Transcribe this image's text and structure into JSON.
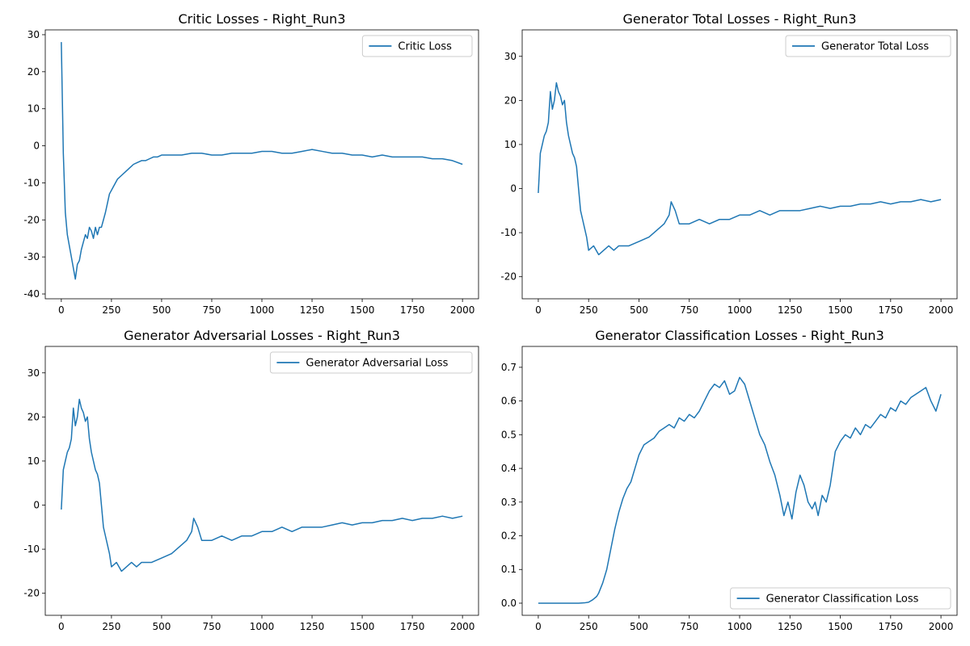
{
  "figure": {
    "line_color": "#1f77b4"
  },
  "chart_data": [
    {
      "type": "line",
      "title": "Critic Losses - Right_Run3",
      "xlabel": "",
      "ylabel": "",
      "xlim": [
        -80,
        2080
      ],
      "ylim": [
        -41.3,
        31.3
      ],
      "xticks": [
        0,
        250,
        500,
        750,
        1000,
        1250,
        1500,
        1750,
        2000
      ],
      "yticks": [
        -40,
        -30,
        -20,
        -10,
        0,
        10,
        20,
        30
      ],
      "grid": false,
      "legend": "top-right",
      "series": [
        {
          "name": "Critic Loss",
          "x": [
            0,
            10,
            20,
            30,
            40,
            50,
            60,
            70,
            80,
            90,
            100,
            110,
            120,
            130,
            140,
            150,
            160,
            170,
            180,
            190,
            200,
            220,
            240,
            260,
            280,
            300,
            320,
            340,
            360,
            380,
            400,
            420,
            440,
            460,
            480,
            500,
            550,
            600,
            650,
            700,
            750,
            800,
            850,
            900,
            950,
            1000,
            1050,
            1100,
            1150,
            1200,
            1250,
            1300,
            1350,
            1400,
            1450,
            1500,
            1550,
            1600,
            1650,
            1700,
            1750,
            1800,
            1850,
            1900,
            1950,
            2000
          ],
          "y": [
            28,
            -2,
            -18,
            -24,
            -27,
            -30,
            -33,
            -36,
            -32,
            -31,
            -28,
            -26,
            -24,
            -25,
            -22,
            -23,
            -25,
            -22,
            -24,
            -22,
            -22,
            -18,
            -13,
            -11,
            -9,
            -8,
            -7,
            -6,
            -5,
            -4.5,
            -4,
            -4,
            -3.5,
            -3,
            -3,
            -2.5,
            -2.5,
            -2.5,
            -2,
            -2,
            -2.5,
            -2.5,
            -2,
            -2,
            -2,
            -1.5,
            -1.5,
            -2,
            -2,
            -1.5,
            -1,
            -1.5,
            -2,
            -2,
            -2.5,
            -2.5,
            -3,
            -2.5,
            -3,
            -3,
            -3,
            -3,
            -3.5,
            -3.5,
            -4,
            -5
          ]
        }
      ]
    },
    {
      "type": "line",
      "title": "Generator Total Losses - Right_Run3",
      "xlabel": "",
      "ylabel": "",
      "xlim": [
        -80,
        2080
      ],
      "ylim": [
        -25,
        36
      ],
      "xticks": [
        0,
        250,
        500,
        750,
        1000,
        1250,
        1500,
        1750,
        2000
      ],
      "yticks": [
        -20,
        -10,
        0,
        10,
        20,
        30
      ],
      "grid": false,
      "legend": "top-right",
      "series": [
        {
          "name": "Generator Total Loss",
          "x": [
            0,
            10,
            20,
            30,
            40,
            50,
            60,
            70,
            80,
            90,
            100,
            110,
            120,
            130,
            140,
            150,
            160,
            170,
            180,
            190,
            200,
            210,
            220,
            230,
            240,
            250,
            275,
            300,
            325,
            350,
            375,
            400,
            450,
            500,
            550,
            600,
            625,
            650,
            660,
            680,
            700,
            750,
            800,
            850,
            900,
            950,
            1000,
            1050,
            1100,
            1150,
            1200,
            1250,
            1300,
            1350,
            1400,
            1450,
            1500,
            1550,
            1600,
            1650,
            1700,
            1750,
            1800,
            1850,
            1900,
            1950,
            2000
          ],
          "y": [
            -1,
            8,
            10,
            12,
            13,
            15,
            22,
            18,
            20,
            24,
            22,
            21,
            19,
            20,
            15,
            12,
            10,
            8,
            7,
            5,
            0,
            -5,
            -7,
            -9,
            -11,
            -14,
            -13,
            -15,
            -14,
            -13,
            -14,
            -13,
            -13,
            -12,
            -11,
            -9,
            -8,
            -6,
            -3,
            -5,
            -8,
            -8,
            -7,
            -8,
            -7,
            -7,
            -6,
            -6,
            -5,
            -6,
            -5,
            -5,
            -5,
            -4.5,
            -4,
            -4.5,
            -4,
            -4,
            -3.5,
            -3.5,
            -3,
            -3.5,
            -3,
            -3,
            -2.5,
            -3,
            -2.5
          ]
        }
      ]
    },
    {
      "type": "line",
      "title": "Generator Adversarial Losses - Right_Run3",
      "xlabel": "",
      "ylabel": "",
      "xlim": [
        -80,
        2080
      ],
      "ylim": [
        -25,
        36
      ],
      "xticks": [
        0,
        250,
        500,
        750,
        1000,
        1250,
        1500,
        1750,
        2000
      ],
      "yticks": [
        -20,
        -10,
        0,
        10,
        20,
        30
      ],
      "grid": false,
      "legend": "top-right",
      "series": [
        {
          "name": "Generator Adversarial Loss",
          "x": [
            0,
            10,
            20,
            30,
            40,
            50,
            60,
            70,
            80,
            90,
            100,
            110,
            120,
            130,
            140,
            150,
            160,
            170,
            180,
            190,
            200,
            210,
            220,
            230,
            240,
            250,
            275,
            300,
            325,
            350,
            375,
            400,
            450,
            500,
            550,
            600,
            625,
            650,
            660,
            680,
            700,
            750,
            800,
            850,
            900,
            950,
            1000,
            1050,
            1100,
            1150,
            1200,
            1250,
            1300,
            1350,
            1400,
            1450,
            1500,
            1550,
            1600,
            1650,
            1700,
            1750,
            1800,
            1850,
            1900,
            1950,
            2000
          ],
          "y": [
            -1,
            8,
            10,
            12,
            13,
            15,
            22,
            18,
            20,
            24,
            22,
            21,
            19,
            20,
            15,
            12,
            10,
            8,
            7,
            5,
            0,
            -5,
            -7,
            -9,
            -11,
            -14,
            -13,
            -15,
            -14,
            -13,
            -14,
            -13,
            -13,
            -12,
            -11,
            -9,
            -8,
            -6,
            -3,
            -5,
            -8,
            -8,
            -7,
            -8,
            -7,
            -7,
            -6,
            -6,
            -5,
            -6,
            -5,
            -5,
            -5,
            -4.5,
            -4,
            -4.5,
            -4,
            -4,
            -3.5,
            -3.5,
            -3,
            -3.5,
            -3,
            -3,
            -2.5,
            -3,
            -2.5
          ]
        }
      ]
    },
    {
      "type": "line",
      "title": "Generator Classification Losses - Right_Run3",
      "xlabel": "",
      "ylabel": "",
      "xlim": [
        -80,
        2080
      ],
      "ylim": [
        -0.036,
        0.762
      ],
      "xticks": [
        0,
        250,
        500,
        750,
        1000,
        1250,
        1500,
        1750,
        2000
      ],
      "yticks": [
        0.0,
        0.1,
        0.2,
        0.3,
        0.4,
        0.5,
        0.6,
        0.7
      ],
      "grid": false,
      "legend": "bottom-right",
      "series": [
        {
          "name": "Generator Classification Loss",
          "x": [
            0,
            50,
            100,
            150,
            200,
            230,
            250,
            270,
            290,
            300,
            320,
            340,
            360,
            380,
            400,
            420,
            440,
            460,
            480,
            500,
            525,
            550,
            575,
            600,
            625,
            650,
            675,
            700,
            725,
            750,
            775,
            800,
            825,
            850,
            875,
            900,
            925,
            950,
            975,
            1000,
            1025,
            1050,
            1075,
            1100,
            1125,
            1150,
            1175,
            1200,
            1220,
            1240,
            1260,
            1280,
            1300,
            1320,
            1340,
            1360,
            1375,
            1390,
            1410,
            1430,
            1450,
            1475,
            1500,
            1525,
            1550,
            1575,
            1600,
            1625,
            1650,
            1675,
            1700,
            1725,
            1750,
            1775,
            1800,
            1825,
            1850,
            1875,
            1900,
            1925,
            1950,
            1975,
            2000
          ],
          "y": [
            0,
            0,
            0,
            0,
            0,
            0.001,
            0.003,
            0.01,
            0.02,
            0.03,
            0.06,
            0.1,
            0.16,
            0.22,
            0.27,
            0.31,
            0.34,
            0.36,
            0.4,
            0.44,
            0.47,
            0.48,
            0.49,
            0.51,
            0.52,
            0.53,
            0.52,
            0.55,
            0.54,
            0.56,
            0.55,
            0.57,
            0.6,
            0.63,
            0.65,
            0.64,
            0.66,
            0.62,
            0.63,
            0.67,
            0.65,
            0.6,
            0.55,
            0.5,
            0.47,
            0.42,
            0.38,
            0.32,
            0.26,
            0.3,
            0.25,
            0.33,
            0.38,
            0.35,
            0.3,
            0.28,
            0.3,
            0.26,
            0.32,
            0.3,
            0.35,
            0.45,
            0.48,
            0.5,
            0.49,
            0.52,
            0.5,
            0.53,
            0.52,
            0.54,
            0.56,
            0.55,
            0.58,
            0.57,
            0.6,
            0.59,
            0.61,
            0.62,
            0.63,
            0.64,
            0.6,
            0.57,
            0.62
          ]
        }
      ]
    }
  ]
}
